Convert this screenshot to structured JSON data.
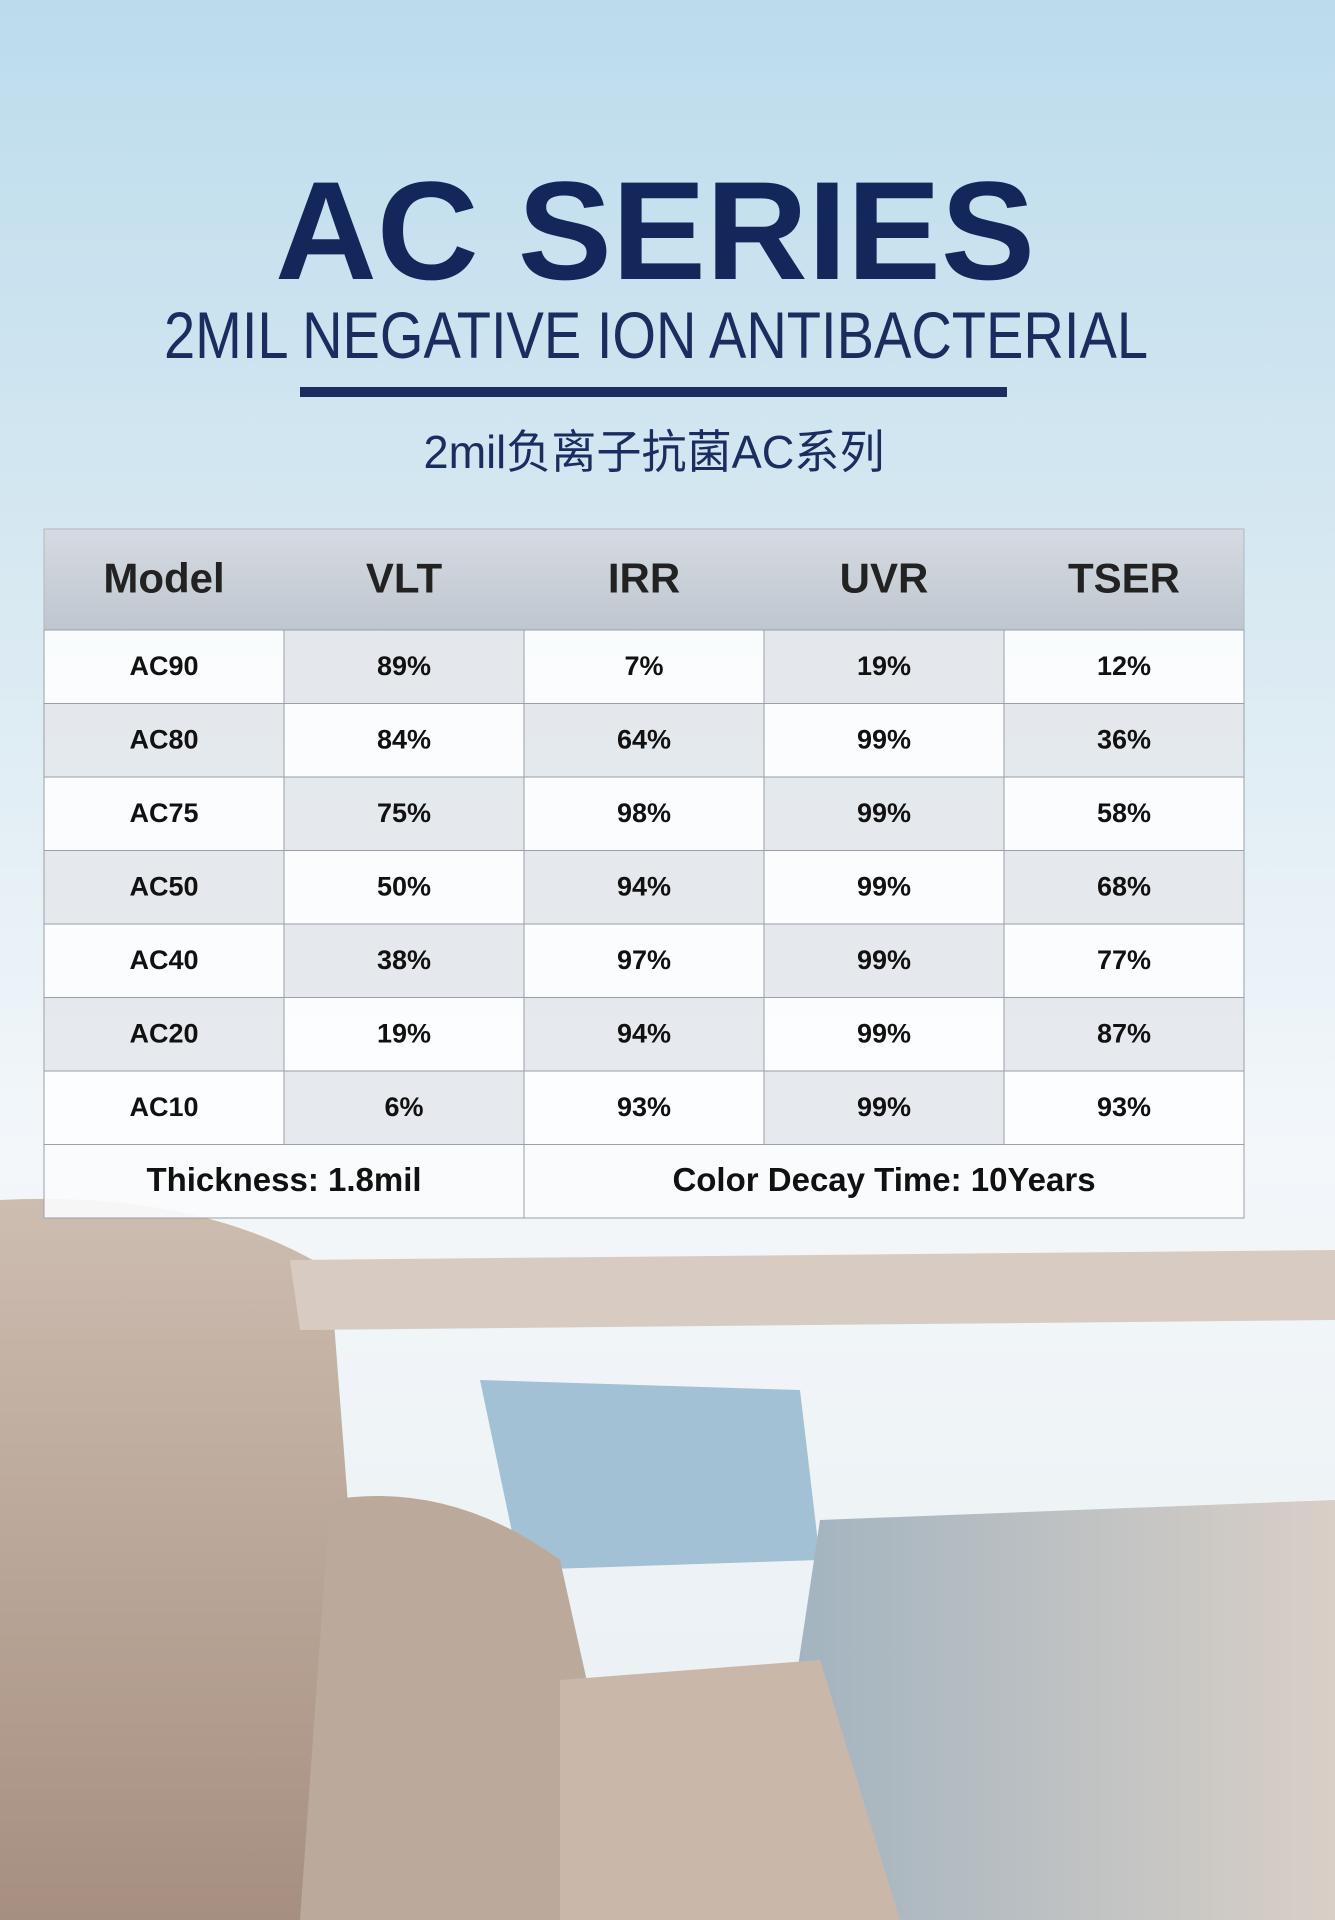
{
  "header": {
    "title": "AC SERIES",
    "subtitle": "2MIL NEGATIVE ION ANTIBACTERIAL",
    "chinese_title": "2mil负离子抗菌AC系列"
  },
  "table": {
    "columns": [
      "Model",
      "VLT",
      "IRR",
      "UVR",
      "TSER"
    ],
    "rows": [
      [
        "AC90",
        "89%",
        "7%",
        "19%",
        "12%"
      ],
      [
        "AC80",
        "84%",
        "64%",
        "99%",
        "36%"
      ],
      [
        "AC75",
        "75%",
        "98%",
        "99%",
        "58%"
      ],
      [
        "AC50",
        "50%",
        "94%",
        "99%",
        "68%"
      ],
      [
        "AC40",
        "38%",
        "97%",
        "99%",
        "77%"
      ],
      [
        "AC20",
        "19%",
        "94%",
        "99%",
        "87%"
      ],
      [
        "AC10",
        "6%",
        "93%",
        "99%",
        "93%"
      ]
    ],
    "footer": [
      "Thickness: 1.8mil",
      "Color Decay Time: 10Years"
    ]
  }
}
